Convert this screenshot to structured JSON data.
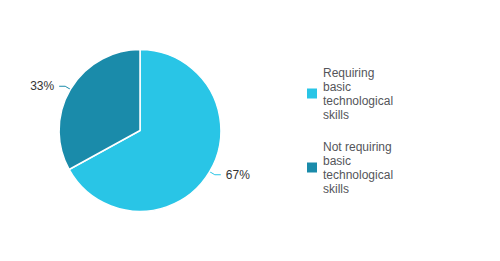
{
  "chart_data": {
    "type": "pie",
    "categories": [
      "Requiring\nbasic\ntechnological\nskills",
      "Not requiring\nbasic\ntechnological\nskills"
    ],
    "values": [
      67,
      33
    ],
    "value_labels": [
      "67%",
      "33%"
    ],
    "colors": [
      "#29C5E6",
      "#1A8BAA"
    ],
    "data_labels": true,
    "legend": "right"
  }
}
